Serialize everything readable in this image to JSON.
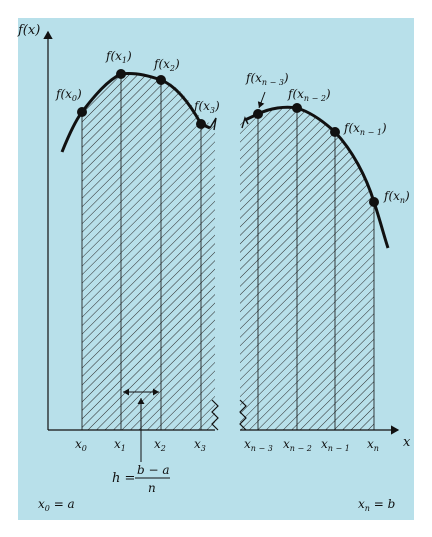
{
  "colors": {
    "panel": "#b8e0ea",
    "hatch": "#2a2a2a",
    "curve": "#111111",
    "dot": "#111111"
  },
  "axes": {
    "y_label": "f(x)",
    "x_label": "x"
  },
  "points_left": [
    {
      "fx": "f(x",
      "fsub": "0",
      "x": "x",
      "xsub": "0"
    },
    {
      "fx": "f(x",
      "fsub": "1",
      "x": "x",
      "xsub": "1"
    },
    {
      "fx": "f(x",
      "fsub": "2",
      "x": "x",
      "xsub": "2"
    },
    {
      "fx": "f(x",
      "fsub": "3",
      "x": "x",
      "xsub": "3"
    }
  ],
  "points_right": [
    {
      "fx": "f(x",
      "fsub": "n − 3",
      "x": "x",
      "xsub": "n − 3"
    },
    {
      "fx": "f(x",
      "fsub": "n − 2",
      "x": "x",
      "xsub": "n − 2"
    },
    {
      "fx": "f(x",
      "fsub": "n − 1",
      "x": "x",
      "xsub": "n − 1"
    },
    {
      "fx": "f(x",
      "fsub": "n",
      "x": "x",
      "xsub": "n"
    }
  ],
  "width_label": {
    "lhs": "h =",
    "numerator": "b − a",
    "denominator": "n"
  },
  "endpoints": {
    "left_var": "x",
    "left_sub": "0",
    "left_eq": " = a",
    "right_var": "x",
    "right_sub": "n",
    "right_eq": " = b"
  }
}
